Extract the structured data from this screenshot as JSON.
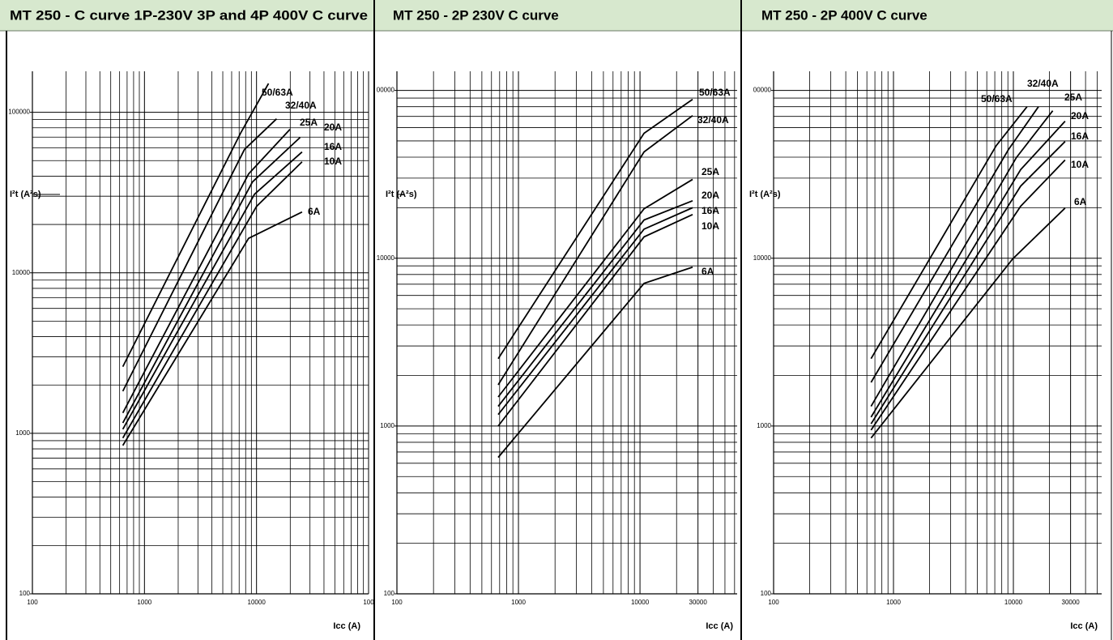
{
  "chart_data": [
    {
      "type": "line",
      "title": "MT 250 - C curve 1P-230V 3P and 4P 400V C curve",
      "xlabel": "Icc (A)",
      "ylabel": "I²t (A²s)",
      "log_x": true,
      "log_y": true,
      "grid": true,
      "color": "#000000",
      "xlim": [
        100,
        100000
      ],
      "ylim": [
        100,
        180000
      ],
      "xticks": [
        100,
        1000,
        10000,
        {
          "value": 100000,
          "label": "100"
        }
      ],
      "yticks": [
        100,
        1000,
        10000,
        100000
      ],
      "xgrid": [
        200,
        300,
        400,
        500,
        600,
        700,
        800,
        900,
        2000,
        3000,
        4000,
        5000,
        6000,
        7000,
        8000,
        9000,
        20000,
        30000,
        40000,
        50000,
        60000,
        70000,
        80000,
        90000
      ],
      "ygrid": [
        200,
        300,
        400,
        500,
        600,
        700,
        800,
        900,
        2000,
        3000,
        4000,
        5000,
        6000,
        7000,
        8000,
        9000,
        20000,
        30000,
        40000,
        50000,
        60000,
        70000,
        80000,
        90000
      ],
      "series": [
        {
          "name": "50/63A",
          "x": [
            641,
            7200,
            12800
          ],
          "values": [
            2600,
            74000,
            151000
          ]
        },
        {
          "name": "32/40A",
          "x": [
            641,
            7800,
            15100
          ],
          "values": [
            1830,
            58600,
            91000
          ]
        },
        {
          "name": "25A",
          "x": [
            641,
            8500,
            19900
          ],
          "values": [
            1340,
            41300,
            78300
          ]
        },
        {
          "name": "20A",
          "x": [
            641,
            9200,
            24500
          ],
          "values": [
            1160,
            36800,
            69700
          ]
        },
        {
          "name": "16A",
          "x": [
            641,
            9600,
            25500
          ],
          "values": [
            1060,
            30900,
            56600
          ]
        },
        {
          "name": "10A",
          "x": [
            641,
            10000,
            25500
          ],
          "values": [
            935,
            25900,
            49100
          ]
        },
        {
          "name": "6A",
          "x": [
            641,
            8500,
            25500
          ],
          "values": [
            840,
            16400,
            23900
          ]
        }
      ]
    },
    {
      "type": "line",
      "title": "MT 250 - 2P 230V C curve",
      "xlabel": "Icc (A)",
      "ylabel": "I²t (A²s)",
      "log_x": true,
      "log_y": true,
      "grid": true,
      "color": "#000000",
      "xlim": [
        100,
        63000
      ],
      "ylim": [
        100,
        130000
      ],
      "xticks": [
        100,
        1000,
        10000,
        30000
      ],
      "yticks": [
        100,
        1000,
        10000,
        {
          "value": 100000,
          "label": "00000"
        }
      ],
      "xgrid": [
        200,
        300,
        400,
        500,
        600,
        700,
        800,
        900,
        2000,
        3000,
        4000,
        5000,
        6000,
        7000,
        8000,
        9000,
        20000,
        40000,
        50000,
        60000
      ],
      "ygrid": [
        200,
        300,
        400,
        500,
        600,
        700,
        800,
        900,
        2000,
        3000,
        4000,
        5000,
        6000,
        7000,
        8000,
        9000,
        20000,
        30000,
        40000,
        50000,
        60000,
        70000,
        80000,
        90000
      ],
      "series": [
        {
          "name": "50/63A",
          "x": [
            681,
            10800,
            27100
          ],
          "values": [
            2520,
            55500,
            88500
          ]
        },
        {
          "name": "32/40A",
          "x": [
            681,
            10800,
            27100
          ],
          "values": [
            1760,
            43000,
            70800
          ]
        },
        {
          "name": "25A",
          "x": [
            681,
            10800,
            27100
          ],
          "values": [
            1490,
            19700,
            29500
          ]
        },
        {
          "name": "20A",
          "x": [
            681,
            10800,
            27100
          ],
          "values": [
            1310,
            16900,
            22000
          ]
        },
        {
          "name": "16A",
          "x": [
            681,
            10800,
            27100
          ],
          "values": [
            1170,
            14900,
            20000
          ]
        },
        {
          "name": "10A",
          "x": [
            681,
            10800,
            27100
          ],
          "values": [
            1000,
            13400,
            18200
          ]
        },
        {
          "name": "6A",
          "x": [
            681,
            10800,
            27100
          ],
          "values": [
            650,
            7080,
            8850
          ]
        }
      ]
    },
    {
      "type": "line",
      "title": "MT 250 - 2P 400V C curve",
      "xlabel": "Icc (A)",
      "ylabel": "I²t (A²s)",
      "log_x": true,
      "log_y": true,
      "grid": true,
      "color": "#000000",
      "xlim": [
        100,
        54500
      ],
      "ylim": [
        100,
        130000
      ],
      "xticks": [
        100,
        1000,
        10000,
        30000
      ],
      "yticks": [
        100,
        1000,
        10000,
        {
          "value": 100000,
          "label": "00000"
        }
      ],
      "xgrid": [
        200,
        300,
        400,
        500,
        600,
        700,
        800,
        900,
        2000,
        3000,
        4000,
        5000,
        6000,
        7000,
        8000,
        9000,
        20000,
        40000,
        50000
      ],
      "ygrid": [
        200,
        300,
        400,
        500,
        600,
        700,
        800,
        900,
        2000,
        3000,
        4000,
        5000,
        6000,
        7000,
        8000,
        9000,
        20000,
        30000,
        40000,
        50000,
        60000,
        70000,
        80000,
        90000
      ],
      "series": [
        {
          "name": "50/63A",
          "x": [
            650,
            7200,
            13000
          ],
          "values": [
            2520,
            46900,
            80000
          ]
        },
        {
          "name": "32/40A",
          "x": [
            650,
            9100,
            16200
          ],
          "values": [
            1820,
            44400,
            80000
          ]
        },
        {
          "name": "25A",
          "x": [
            650,
            10600,
            21300
          ],
          "values": [
            1310,
            39800,
            75700
          ]
        },
        {
          "name": "20A",
          "x": [
            650,
            11500,
            27000
          ],
          "values": [
            1130,
            33700,
            65500
          ]
        },
        {
          "name": "16A",
          "x": [
            650,
            11500,
            27000
          ],
          "values": [
            1030,
            26900,
            49600
          ]
        },
        {
          "name": "10A",
          "x": [
            650,
            11500,
            27000
          ],
          "values": [
            946,
            20400,
            38500
          ]
        },
        {
          "name": "6A",
          "x": [
            650,
            9850,
            27000
          ],
          "values": [
            848,
            9890,
            19900
          ]
        }
      ]
    }
  ]
}
